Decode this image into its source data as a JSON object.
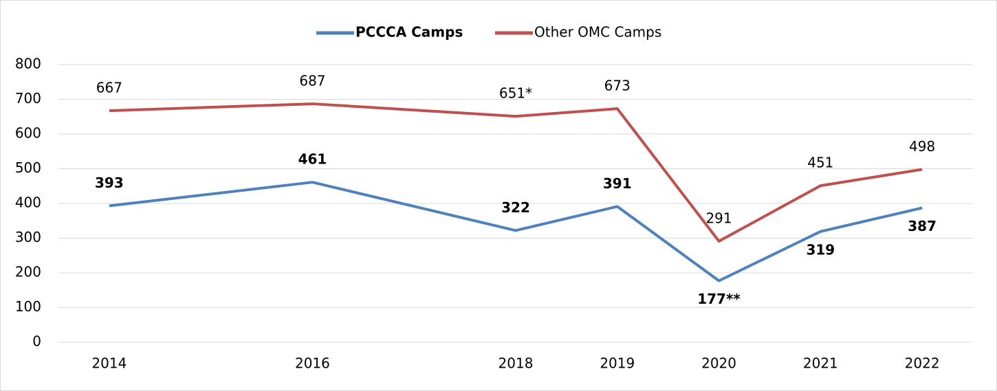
{
  "chart_data": {
    "type": "line",
    "x": [
      2014,
      2016,
      2018,
      2019,
      2020,
      2021,
      2022
    ],
    "xlim": [
      2013.5,
      2022.5
    ],
    "xticks": [
      2014,
      2016,
      2018,
      2019,
      2020,
      2021,
      2022
    ],
    "ylim": [
      0,
      800
    ],
    "yticks": [
      0,
      100,
      200,
      300,
      400,
      500,
      600,
      700,
      800
    ],
    "grid": true,
    "legend": "top",
    "series": [
      {
        "name": "PCCCA Camps",
        "color": "#4f81bd",
        "values": [
          393,
          461,
          322,
          391,
          177,
          319,
          387
        ],
        "value_labels": [
          "393",
          "461",
          "322",
          "391",
          "177**",
          "319",
          "387"
        ]
      },
      {
        "name": "Other OMC Camps",
        "color": "#c0504d",
        "values": [
          667,
          687,
          651,
          673,
          291,
          451,
          498
        ],
        "value_labels": [
          "667",
          "687",
          "651*",
          "673",
          "291",
          "451",
          "498"
        ]
      }
    ]
  }
}
